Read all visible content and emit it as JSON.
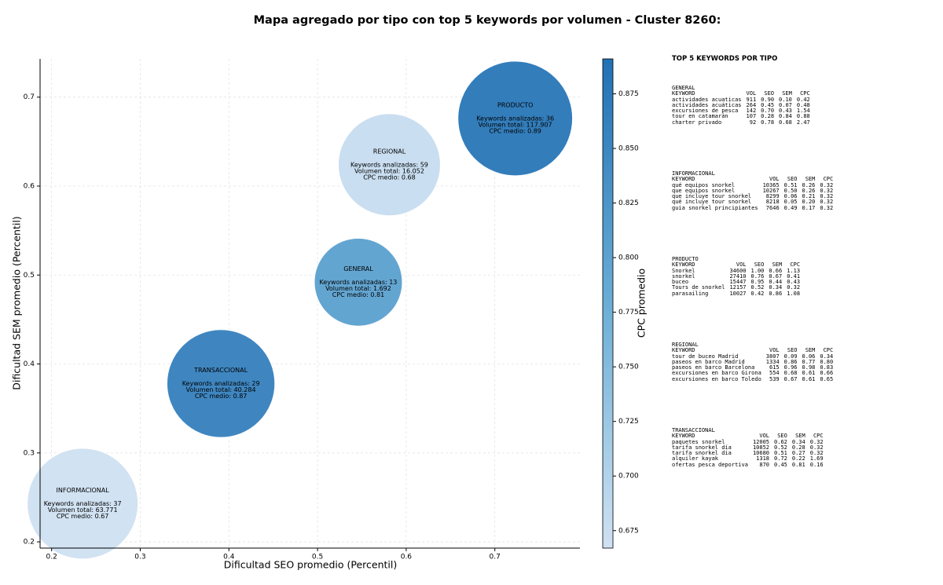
{
  "chart_data": {
    "type": "bubble",
    "title": "Mapa agregado por tipo con top 5 keywords por volumen - Cluster 8260:",
    "x_label": "Dificultad SEO promedio (Percentil)",
    "y_label": "Dificultad SEM promedio (Percentil)",
    "colorbar_label": "CPC promedio",
    "categories": [
      "PRODUCTO",
      "REGIONAL",
      "GENERAL",
      "TRANSACCIONAL",
      "INFORMACIONAL"
    ],
    "x": [
      0.723,
      0.581,
      0.546,
      0.391,
      0.235
    ],
    "y": [
      0.676,
      0.624,
      0.492,
      0.378,
      0.243
    ],
    "sizes": [
      117907,
      16052,
      1692,
      40284,
      63771
    ],
    "color_values": [
      0.89,
      0.68,
      0.81,
      0.87,
      0.67
    ],
    "annotations": [
      [
        "Keywords analizadas: 36",
        "Volumen total: 117.907",
        "CPC medio: 0.89"
      ],
      [
        "Keywords analizadas: 59",
        "Volumen total: 16.052",
        "CPC medio: 0.68"
      ],
      [
        "Keywords analizadas: 13",
        "Volumen total: 1.692",
        "CPC medio: 0.81"
      ],
      [
        "Keywords analizadas: 29",
        "Volumen total: 40.284",
        "CPC medio: 0.87"
      ],
      [
        "Keywords analizadas: 37",
        "Volumen total: 63.771",
        "CPC medio: 0.67"
      ]
    ],
    "colormap": [
      "#d0e1f2",
      "#6aaed6",
      "#2171b5"
    ],
    "xlim": [
      0.187,
      0.796
    ],
    "ylim": [
      0.193,
      0.743
    ],
    "clim": [
      0.667,
      0.891
    ],
    "xticks": [
      0.2,
      0.3,
      0.4,
      0.5,
      0.6,
      0.7
    ],
    "yticks": [
      0.2,
      0.3,
      0.4,
      0.5,
      0.6,
      0.7
    ],
    "cticks": [
      0.675,
      {
        "value": 0.7,
        "label": "0.700"
      },
      0.725,
      {
        "value": 0.75,
        "label": "0.750"
      },
      0.775,
      {
        "value": 0.8,
        "label": "0.800"
      },
      0.825,
      {
        "value": 0.85,
        "label": "0.850"
      },
      0.875
    ],
    "grid": true
  },
  "side_panel": {
    "title": "TOP 5 KEYWORDS POR TIPO",
    "tables": [
      {
        "title": "GENERAL",
        "columns": [
          "KEYWORD",
          "VOL",
          "SEO",
          "SEM",
          "CPC"
        ],
        "rows": [
          [
            "actividades acuaticas",
            "911",
            "0.90",
            "0.10",
            "0.42"
          ],
          [
            "actividades acuáticas",
            "264",
            "0.45",
            "0.07",
            "0.48"
          ],
          [
            "excursiones de pesca",
            "142",
            "0.70",
            "0.43",
            "1.54"
          ],
          [
            "tour en catamarán",
            "107",
            "0.28",
            "0.84",
            "0.88"
          ],
          [
            "charter privado",
            "92",
            "0.78",
            "0.68",
            "2.47"
          ]
        ]
      },
      {
        "title": "INFORMACIONAL",
        "columns": [
          "KEYWORD",
          "VOL",
          "SEO",
          "SEM",
          "CPC"
        ],
        "rows": [
          [
            "qué equipos snorkel",
            "10365",
            "0.51",
            "0.26",
            "0.32"
          ],
          [
            "que equipos snorkel",
            "10267",
            "0.50",
            "0.26",
            "0.32"
          ],
          [
            "que incluye tour snorkel",
            "8299",
            "0.06",
            "0.21",
            "0.32"
          ],
          [
            "qué incluye tour snorkel",
            "8218",
            "0.05",
            "0.20",
            "0.32"
          ],
          [
            "guia snorkel principiantes",
            "7646",
            "0.49",
            "0.17",
            "0.32"
          ]
        ]
      },
      {
        "title": "PRODUCTO",
        "columns": [
          "KEYWORD",
          "VOL",
          "SEO",
          "SEM",
          "CPC"
        ],
        "rows": [
          [
            "Snorkel",
            "34600",
            "1.00",
            "0.66",
            "1.13"
          ],
          [
            "snorkel",
            "27410",
            "0.76",
            "0.67",
            "0.41"
          ],
          [
            "buceo",
            "15447",
            "0.95",
            "0.44",
            "0.43"
          ],
          [
            "Tours de snorkel",
            "12157",
            "0.52",
            "0.34",
            "0.32"
          ],
          [
            "parasailing",
            "10027",
            "0.42",
            "0.86",
            "1.08"
          ]
        ]
      },
      {
        "title": "REGIONAL",
        "columns": [
          "KEYWORD",
          "VOL",
          "SEO",
          "SEM",
          "CPC"
        ],
        "rows": [
          [
            "tour de buceo Madrid",
            "3807",
            "0.09",
            "0.06",
            "0.34"
          ],
          [
            "paseos en barco Madrid",
            "1334",
            "0.86",
            "0.77",
            "0.80"
          ],
          [
            "paseos en barco Barcelona",
            "615",
            "0.96",
            "0.98",
            "0.83"
          ],
          [
            "excursiones en barco Girona",
            "554",
            "0.68",
            "0.61",
            "0.66"
          ],
          [
            "excursiones en barco Toledo",
            "539",
            "0.67",
            "0.61",
            "0.65"
          ]
        ]
      },
      {
        "title": "TRANSACCIONAL",
        "columns": [
          "KEYWORD",
          "VOL",
          "SEO",
          "SEM",
          "CPC"
        ],
        "rows": [
          [
            "paquetes snorkel",
            "12005",
            "0.62",
            "0.34",
            "0.32"
          ],
          [
            "tarifa snorkel día",
            "10852",
            "0.52",
            "0.28",
            "0.32"
          ],
          [
            "tarifa snorkel dia",
            "10680",
            "0.51",
            "0.27",
            "0.32"
          ],
          [
            "alquiler kayak",
            "1318",
            "0.72",
            "0.22",
            "1.69"
          ],
          [
            "ofertas pesca deportiva",
            "870",
            "0.45",
            "0.81",
            "0.16"
          ]
        ]
      }
    ]
  }
}
